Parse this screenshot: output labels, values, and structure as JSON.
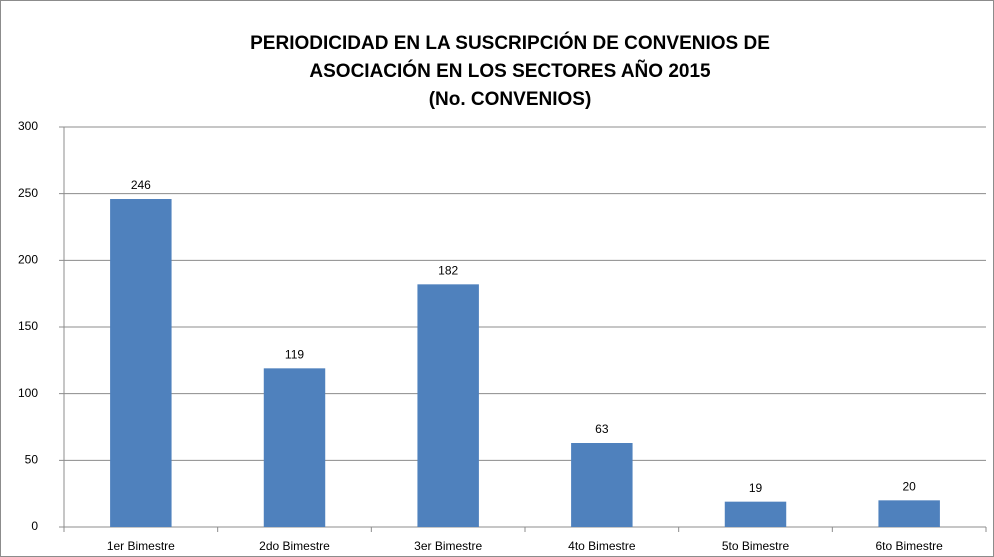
{
  "chart_data": {
    "type": "bar",
    "title": [
      "PERIODICIDAD EN LA SUSCRIPCIÓN DE CONVENIOS DE",
      "ASOCIACIÓN EN LOS SECTORES AÑO 2015",
      "(No. CONVENIOS)"
    ],
    "categories": [
      "1er Bimestre",
      "2do Bimestre",
      "3er Bimestre",
      "4to Bimestre",
      "5to Bimestre",
      "6to Bimestre"
    ],
    "values": [
      246,
      119,
      182,
      63,
      19,
      20
    ],
    "color": "#4f81bd",
    "ylim": [
      0,
      300
    ],
    "yticks": [
      0,
      50,
      100,
      150,
      200,
      250,
      300
    ],
    "grid": true
  }
}
